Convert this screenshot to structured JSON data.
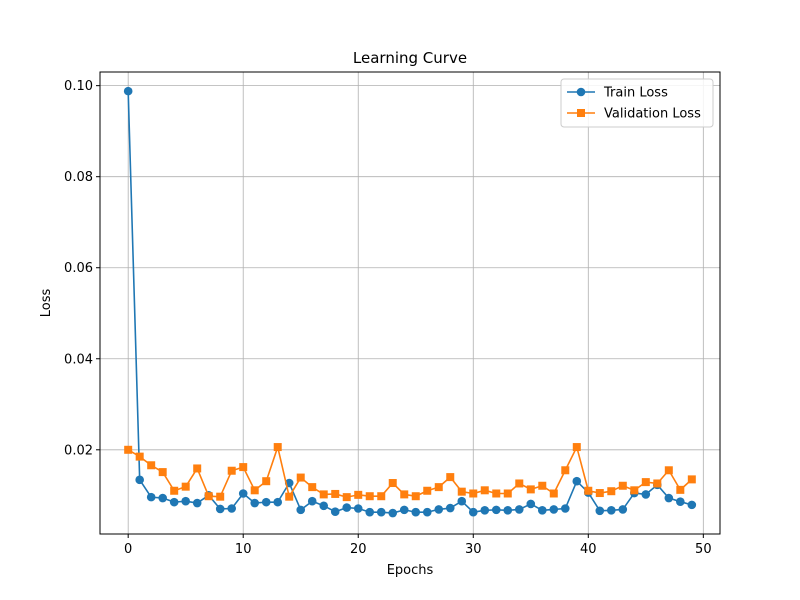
{
  "chart_data": {
    "type": "line",
    "title": "Learning Curve",
    "xlabel": "Epochs",
    "ylabel": "Loss",
    "xlim": [
      -2.45,
      51.45
    ],
    "ylim": [
      0.0015,
      0.103
    ],
    "xticks": [
      0,
      10,
      20,
      30,
      40,
      50
    ],
    "yticks": [
      0.02,
      0.04,
      0.06,
      0.08,
      0.1
    ],
    "ytick_labels": [
      "0.02",
      "0.04",
      "0.06",
      "0.08",
      "0.10"
    ],
    "grid": true,
    "legend_position": "top-right",
    "x": [
      0,
      1,
      2,
      3,
      4,
      5,
      6,
      7,
      8,
      9,
      10,
      11,
      12,
      13,
      14,
      15,
      16,
      17,
      18,
      19,
      20,
      21,
      22,
      23,
      24,
      25,
      26,
      27,
      28,
      29,
      30,
      31,
      32,
      33,
      34,
      35,
      36,
      37,
      38,
      39,
      40,
      41,
      42,
      43,
      44,
      45,
      46,
      47,
      48,
      49
    ],
    "series": [
      {
        "name": "Train Loss",
        "color": "#1f77b4",
        "marker": "circle",
        "values": [
          0.0988,
          0.0134,
          0.0096,
          0.0094,
          0.0085,
          0.0087,
          0.0083,
          0.01,
          0.007,
          0.0071,
          0.0104,
          0.0083,
          0.0085,
          0.0085,
          0.0127,
          0.0068,
          0.0087,
          0.0077,
          0.0064,
          0.0073,
          0.0071,
          0.0063,
          0.0063,
          0.0061,
          0.0068,
          0.0063,
          0.0063,
          0.0069,
          0.0072,
          0.0087,
          0.0063,
          0.0067,
          0.0068,
          0.0067,
          0.0069,
          0.0081,
          0.0067,
          0.0069,
          0.0071,
          0.0131,
          0.0106,
          0.0066,
          0.0067,
          0.0069,
          0.0105,
          0.0102,
          0.0123,
          0.0094,
          0.0086,
          0.0079
        ]
      },
      {
        "name": "Validation Loss",
        "color": "#ff7f0e",
        "marker": "square",
        "values": [
          0.02,
          0.0185,
          0.0166,
          0.0151,
          0.011,
          0.0119,
          0.0159,
          0.0098,
          0.0097,
          0.0154,
          0.0162,
          0.0111,
          0.0131,
          0.0206,
          0.0097,
          0.0139,
          0.0118,
          0.0102,
          0.0103,
          0.0096,
          0.0101,
          0.0098,
          0.0098,
          0.0127,
          0.0102,
          0.0098,
          0.011,
          0.0118,
          0.014,
          0.0108,
          0.0104,
          0.0111,
          0.0104,
          0.0104,
          0.0126,
          0.0113,
          0.0121,
          0.0104,
          0.0155,
          0.0206,
          0.011,
          0.0105,
          0.0109,
          0.0121,
          0.0111,
          0.0129,
          0.0126,
          0.0155,
          0.0112,
          0.0135
        ]
      }
    ]
  }
}
